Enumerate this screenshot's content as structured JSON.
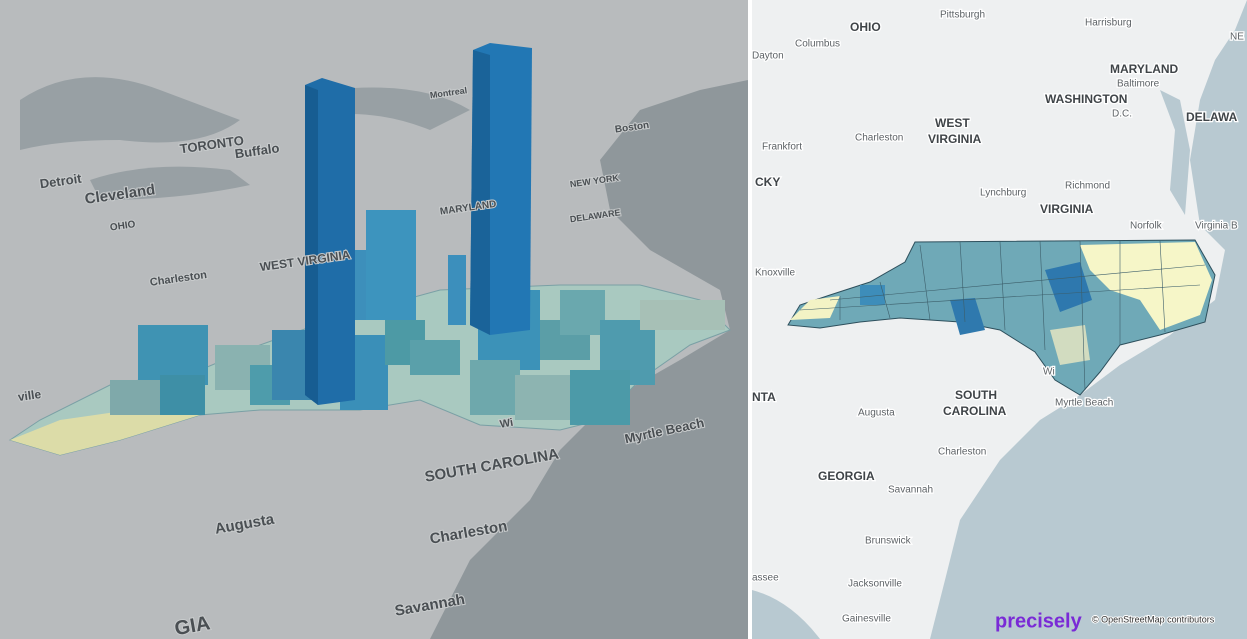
{
  "left_map": {
    "labels": [
      "TORONTO",
      "Buffalo",
      "Detroit",
      "Cleveland",
      "OHIO",
      "WEST VIRGINIA",
      "Charleston",
      "ville",
      "Montreal",
      "Boston",
      "NEW YORK",
      "MARYLAND",
      "DELAWARE",
      "SOUTH CAROLINA",
      "Augusta",
      "Charleston",
      "Savannah",
      "GIA",
      "Myrtle Beach",
      "Wi"
    ]
  },
  "right_map": {
    "labels": [
      "OHIO",
      "Pittsburgh",
      "Harrisburg",
      "NE",
      "Columbus",
      "Dayton",
      "MARYLAND",
      "Baltimore",
      "WASHINGTON",
      "D.C.",
      "DELAWA",
      "WEST",
      "VIRGINIA",
      "Charleston",
      "Frankfort",
      "CKY",
      "Lynchburg",
      "Richmond",
      "VIRGINIA",
      "Norfolk",
      "Virginia B",
      "Knoxville",
      "SOUTH",
      "CAROLINA",
      "Myrtle Beach",
      "Augusta",
      "NTA",
      "Charleston",
      "GEORGIA",
      "Savannah",
      "Brunswick",
      "Jacksonville",
      "assee",
      "Gainesville",
      "Wi"
    ]
  },
  "attribution": {
    "logo": "precisely",
    "text": "© OpenStreetMap contributors"
  }
}
